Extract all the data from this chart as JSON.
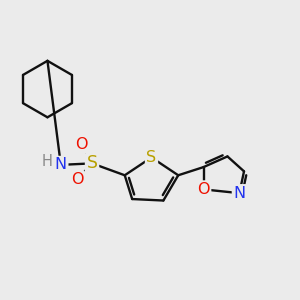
{
  "background_color": "#ebebeb",
  "colors": {
    "S": "#b8a000",
    "O": "#ee1100",
    "N": "#2233ee",
    "C": "#111111",
    "H": "#888888",
    "bond": "#111111"
  }
}
